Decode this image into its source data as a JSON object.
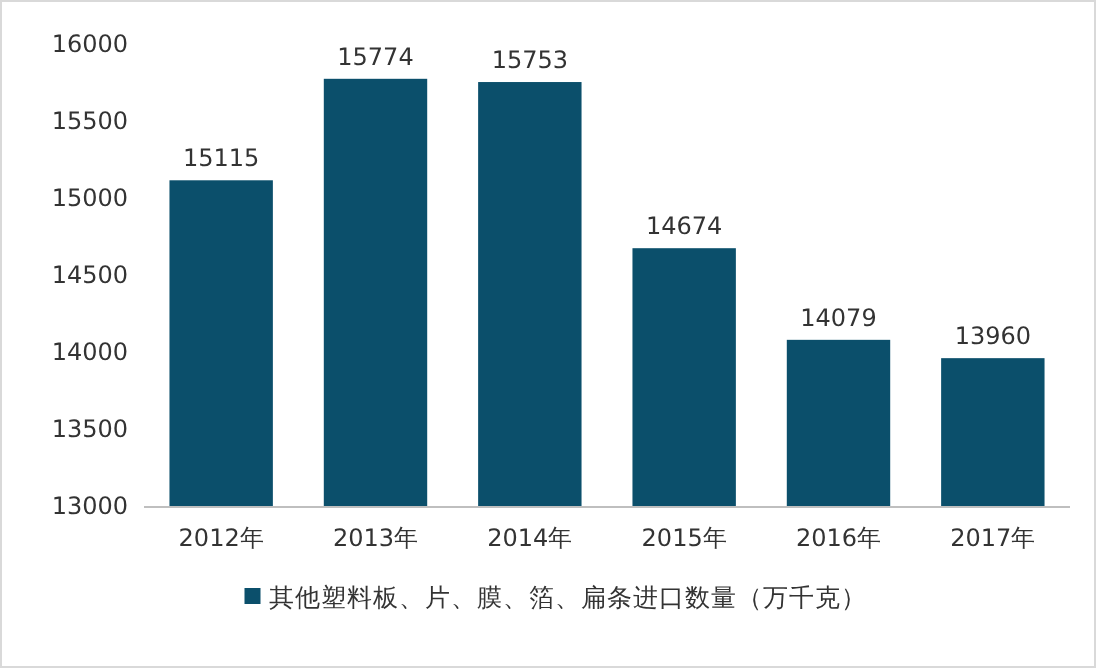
{
  "chart_data": {
    "type": "bar",
    "categories": [
      "2012年",
      "2013年",
      "2014年",
      "2015年",
      "2016年",
      "2017年"
    ],
    "series": [
      {
        "name": "其他塑料板、片、膜、箔、扁条进口数量（万千克）",
        "color": "#0b4f6b",
        "values": [
          15115,
          15774,
          15753,
          14674,
          14079,
          13960
        ]
      }
    ],
    "ylim": [
      13000,
      16000
    ],
    "yticks": [
      13000,
      13500,
      14000,
      14500,
      15000,
      15500,
      16000
    ],
    "data_labels": true,
    "legend": "bottom"
  }
}
